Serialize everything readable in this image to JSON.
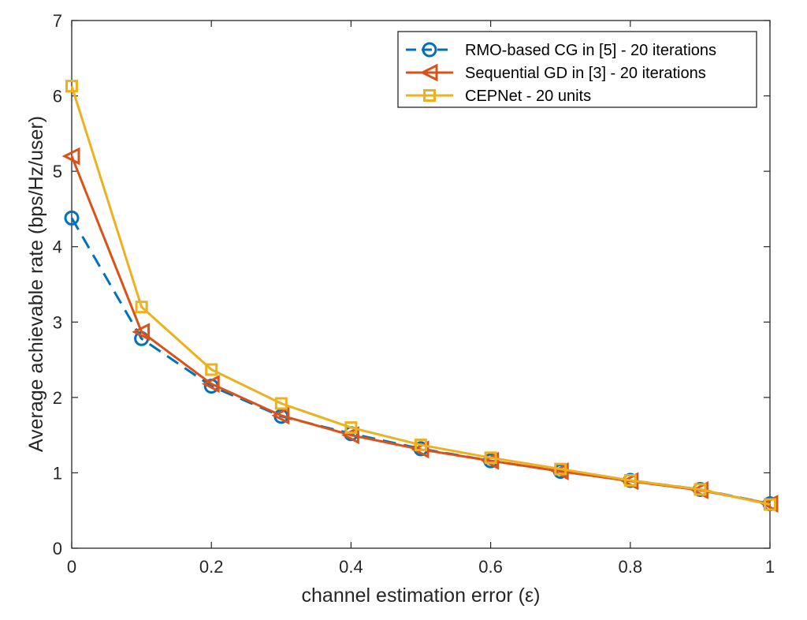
{
  "chart_data": {
    "type": "line",
    "xlabel": "channel estimation error (ε)",
    "ylabel": "Average achievable rate (bps/Hz/user)",
    "xlim": [
      0,
      1
    ],
    "ylim": [
      0,
      7
    ],
    "x_ticks": [
      "0",
      "0.2",
      "0.4",
      "0.6",
      "0.8",
      "1"
    ],
    "y_ticks": [
      "0",
      "1",
      "2",
      "3",
      "4",
      "5",
      "6",
      "7"
    ],
    "grid": false,
    "legend_position": "top-right",
    "x": [
      0,
      0.1,
      0.2,
      0.3,
      0.4,
      0.5,
      0.6,
      0.7,
      0.8,
      0.9,
      1.0
    ],
    "series": [
      {
        "name": "RMO-based CG in [5] - 20 iterations",
        "color": "#0072BD",
        "line_style": "dashed",
        "marker": "circle",
        "values": [
          4.38,
          2.78,
          2.15,
          1.75,
          1.52,
          1.32,
          1.16,
          1.02,
          0.9,
          0.78,
          0.59
        ]
      },
      {
        "name": "Sequential GD in [3] - 20 iterations",
        "color": "#D95319",
        "line_style": "solid",
        "marker": "triangle-left",
        "values": [
          5.2,
          2.87,
          2.18,
          1.76,
          1.5,
          1.31,
          1.16,
          1.02,
          0.89,
          0.77,
          0.59
        ]
      },
      {
        "name": "CEPNet - 20 units",
        "color": "#EDB120",
        "line_style": "solid",
        "marker": "square",
        "values": [
          6.13,
          3.2,
          2.37,
          1.92,
          1.6,
          1.37,
          1.2,
          1.05,
          0.9,
          0.78,
          0.58
        ]
      }
    ]
  }
}
